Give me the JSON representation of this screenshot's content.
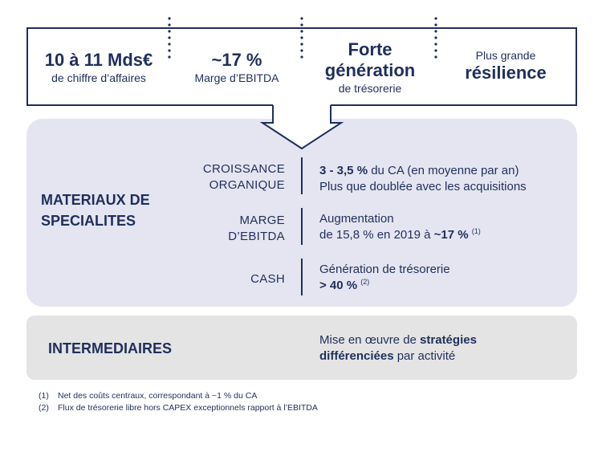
{
  "kpis": {
    "revenue": {
      "value": "10 à 11 Mds€",
      "caption": "de chiffre d’affaires"
    },
    "margin": {
      "value": "~17 %",
      "caption": "Marge d’EBITDA"
    },
    "cash": {
      "value_line1": "Forte",
      "value_line2": "génération",
      "caption": "de trésorerie"
    },
    "resilience": {
      "caption": "Plus grande",
      "value": "résilience"
    }
  },
  "materiaux": {
    "title_line1": "MATERIAUX DE",
    "title_line2": "SPECIALITES",
    "rows": [
      {
        "label_line1": "CROISSANCE",
        "label_line2": "ORGANIQUE",
        "text_bold": "3 - 3,5 %",
        "text_rest": " du CA (en moyenne par an)",
        "text_line2": "Plus que doublée avec les acquisitions"
      },
      {
        "label_line1": "MARGE",
        "label_line2": "D’EBITDA",
        "text_line1": "Augmentation",
        "text_prefix": "de 15,8 % en 2019 à ",
        "text_bold": "~17 %",
        "note": "(1)"
      },
      {
        "label_line1": "CASH",
        "text_line1": "Génération de trésorerie",
        "text_bold": "> 40 %",
        "note": "(2)"
      }
    ]
  },
  "intermediaires": {
    "title": "INTERMEDIAIRES",
    "text_prefix": "Mise en œuvre de ",
    "text_bold1": "stratégies",
    "text_bold2": "différenciées",
    "text_suffix": " par activité"
  },
  "footnotes": [
    {
      "num": "(1)",
      "text": "Net des coûts centraux, correspondant à ~1 % du CA"
    },
    {
      "num": "(2)",
      "text": "Flux de trésorerie libre hors CAPEX exceptionnels rapport à l’EBITDA"
    }
  ],
  "colors": {
    "navy": "#1f2f5c",
    "lavender": "#e4e5f1",
    "grey": "#e4e4e4"
  }
}
